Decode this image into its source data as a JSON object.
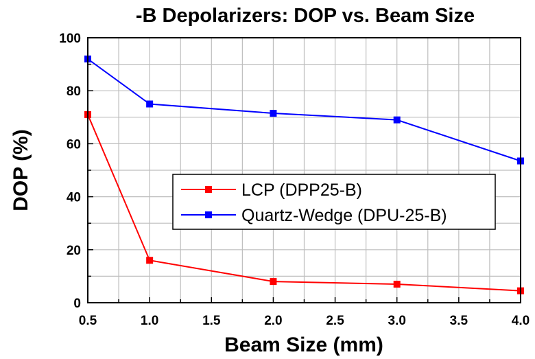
{
  "chart_data": {
    "type": "line",
    "title": "-B Depolarizers: DOP vs. Beam Size",
    "xlabel": "Beam Size (mm)",
    "ylabel": "DOP (%)",
    "xlim": [
      0.5,
      4.0
    ],
    "ylim": [
      0,
      100
    ],
    "x_ticks": [
      "0.5",
      "1.0",
      "1.5",
      "2.0",
      "2.5",
      "3.0",
      "3.5",
      "4.0"
    ],
    "y_ticks": [
      "0",
      "20",
      "40",
      "60",
      "80",
      "100"
    ],
    "grid": true,
    "legend_position": "center-right",
    "series": [
      {
        "name": "LCP (DPP25-B)",
        "color": "#ff0000",
        "x": [
          0.5,
          1.0,
          2.0,
          3.0,
          4.0
        ],
        "y": [
          71,
          16,
          8,
          7,
          4.5
        ]
      },
      {
        "name": "Quartz-Wedge (DPU-25-B)",
        "color": "#0000ff",
        "x": [
          0.5,
          1.0,
          2.0,
          3.0,
          4.0
        ],
        "y": [
          92,
          75,
          71.5,
          69,
          53.5
        ]
      }
    ]
  }
}
